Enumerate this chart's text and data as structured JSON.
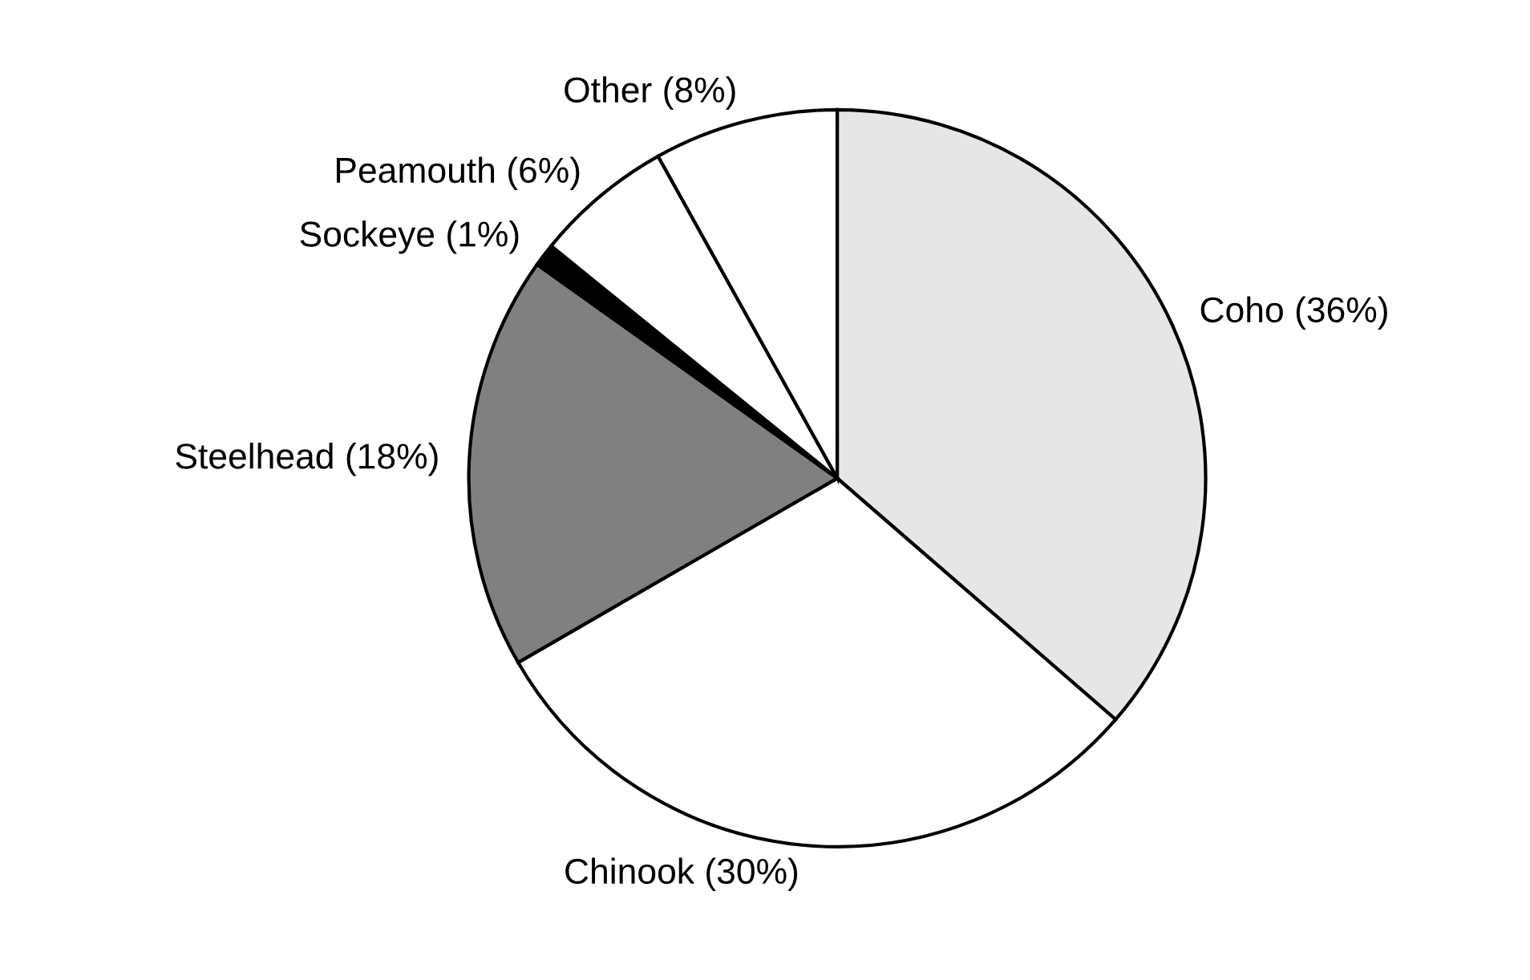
{
  "chart_data": {
    "type": "pie",
    "categories": [
      "Coho (36%)",
      "Chinook (30%)",
      "Steelhead (18%)",
      "Sockeye (1%)",
      "Peamouth (6%)",
      "Other (8%)"
    ],
    "values": [
      36,
      30,
      18,
      1,
      6,
      8
    ],
    "colors": [
      "#e6e6e6",
      "#ffffff",
      "#808080",
      "#000000",
      "#ffffff",
      "#ffffff"
    ]
  }
}
